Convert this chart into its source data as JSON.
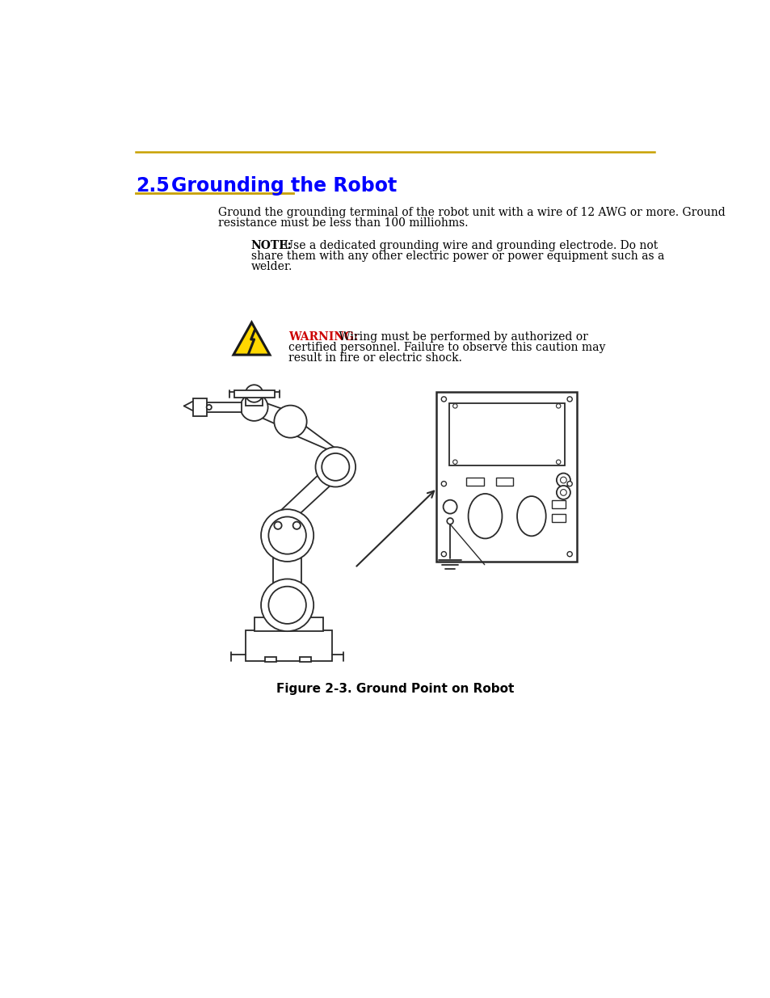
{
  "bg_color": "#ffffff",
  "top_line_color": "#c8a000",
  "section_number": "2.5",
  "section_title": "Grounding the Robot",
  "section_title_color": "#0000ff",
  "section_underline_color": "#c8a000",
  "body_line1": "Ground the grounding terminal of the robot unit with a wire of 12 AWG or more. Ground",
  "body_line2": "resistance must be less than 100 milliohms.",
  "note_bold": "NOTE:",
  "note_line1": " Use a dedicated grounding wire and grounding electrode. Do not",
  "note_line2": "share them with any other electric power or power equipment such as a",
  "note_line3": "welder.",
  "warning_bold": "WARNING:",
  "warning_bold_color": "#cc0000",
  "warning_line1": " Wiring must be performed by authorized or",
  "warning_line2": "certified personnel. Failure to observe this caution may",
  "warning_line3": "result in fire or electric shock.",
  "figure_caption": "Figure 2-3. Ground Point on Robot",
  "robot_color": "#2a2a2a",
  "panel_color": "#2a2a2a"
}
